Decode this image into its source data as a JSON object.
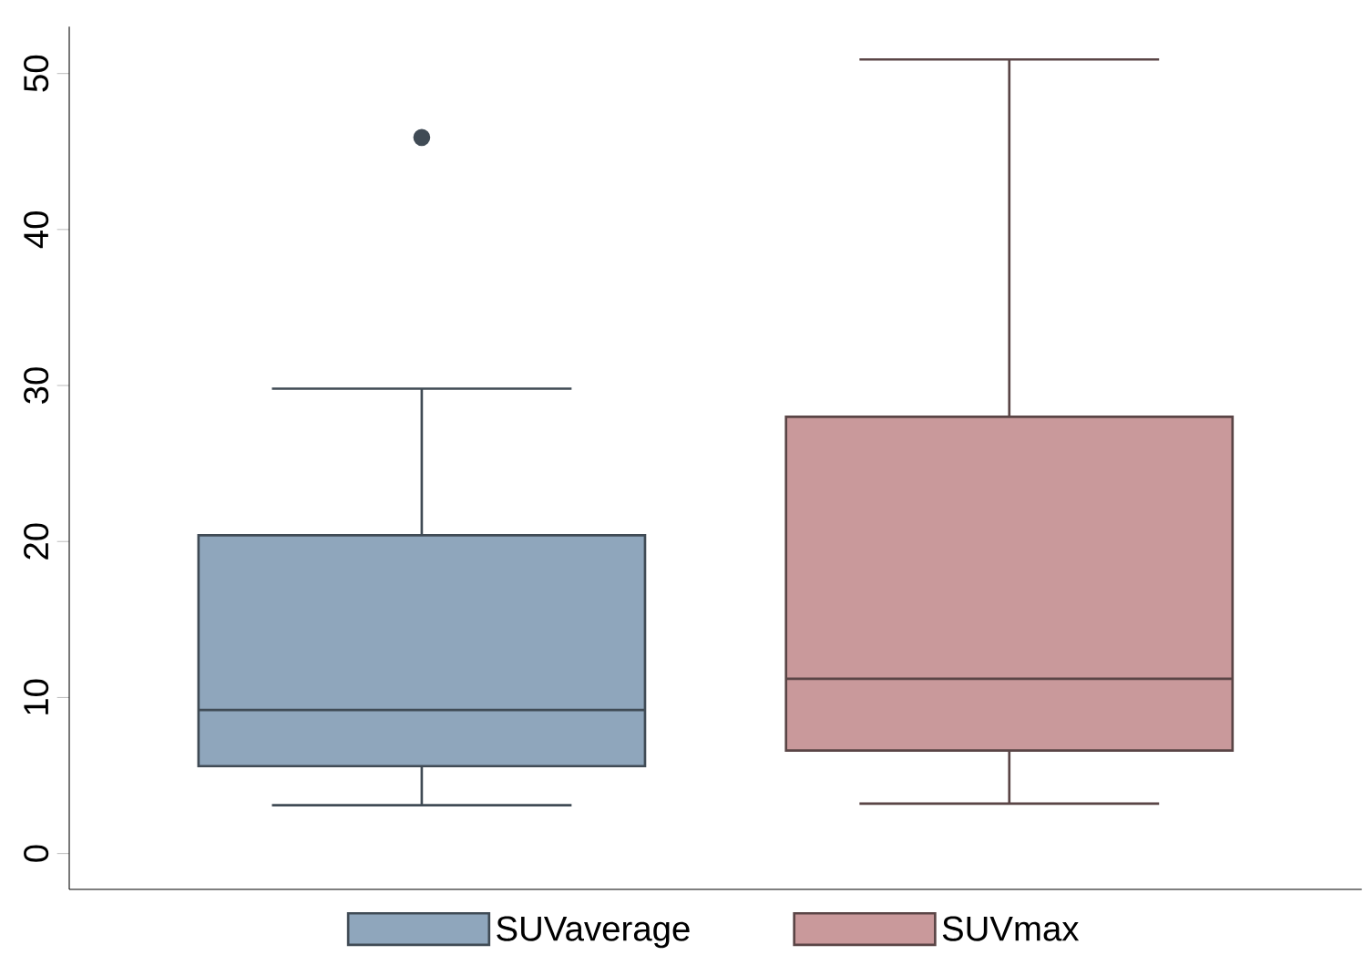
{
  "chart_data": {
    "type": "box",
    "categories": [
      null
    ],
    "series": [
      {
        "name": "SUVaverage",
        "color": "#8fa6bc",
        "boxes": [
          {
            "low": 3.1,
            "q1": 5.6,
            "median": 9.2,
            "q3": 20.4,
            "high": 29.8,
            "outliers": [
              45.9
            ]
          }
        ]
      },
      {
        "name": "SUVmax",
        "color": "#c9999b",
        "boxes": [
          {
            "low": 3.2,
            "q1": 6.6,
            "median": 11.2,
            "q3": 28.0,
            "high": 50.9
          }
        ]
      }
    ],
    "ylim": [
      -2.3,
      53
    ],
    "yticks": [
      0,
      10,
      20,
      30,
      40,
      50
    ],
    "grid": false,
    "legend": "bottom"
  }
}
